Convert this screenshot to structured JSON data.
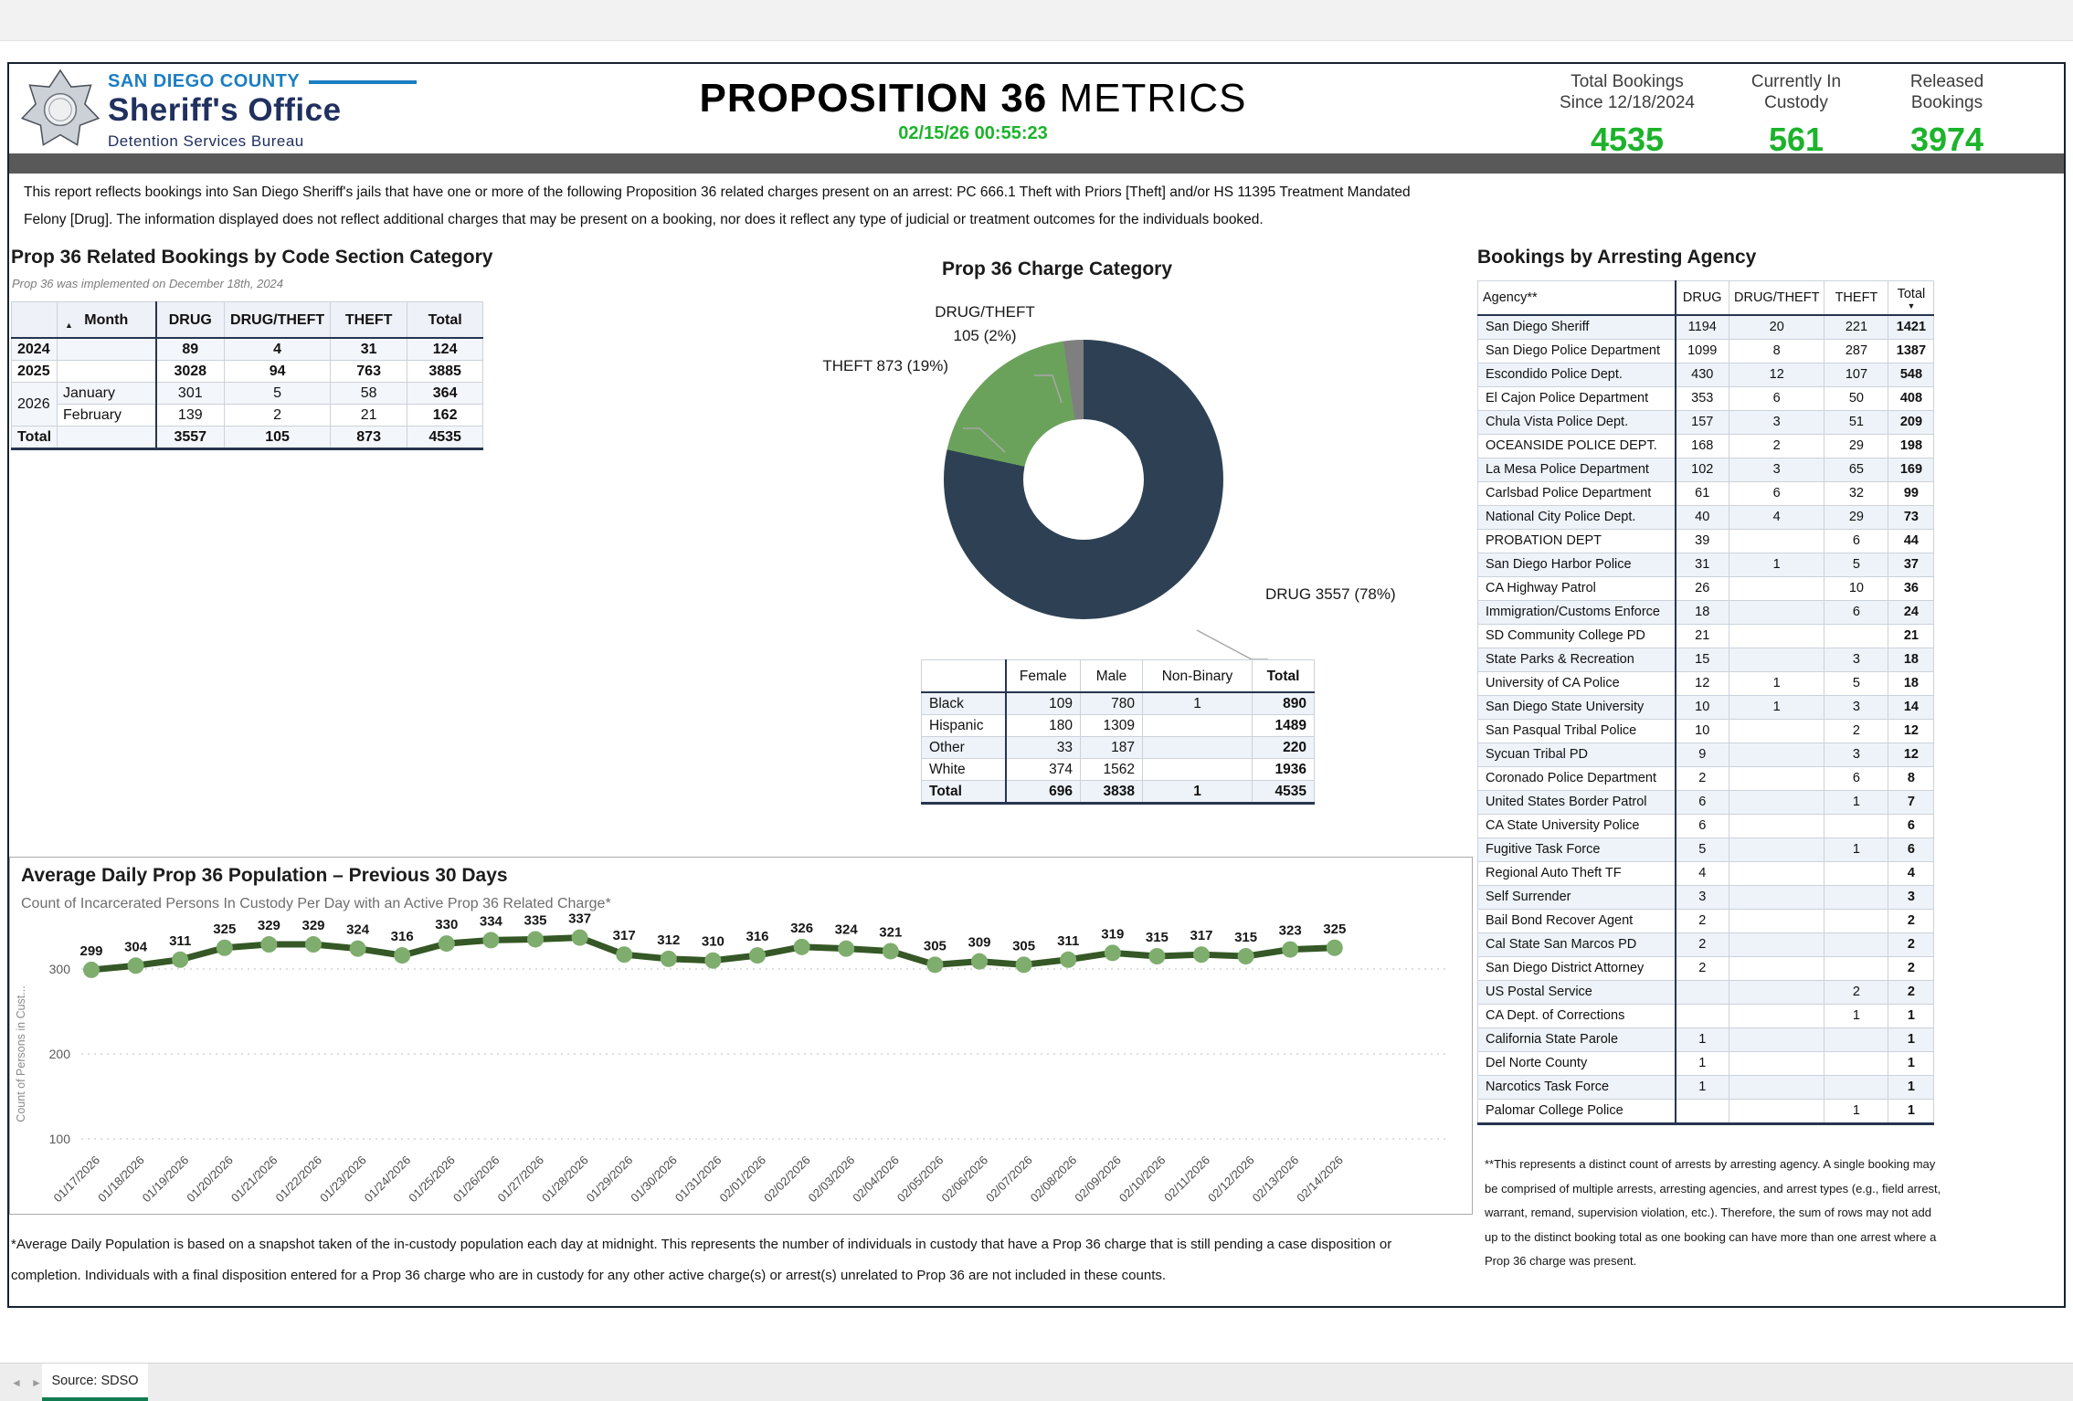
{
  "header": {
    "agency_line1": "SAN DIEGO COUNTY",
    "agency_line2": "Sheriff's Office",
    "agency_line3": "Detention Services Bureau",
    "title_bold": "PROPOSITION 36",
    "title_light": " METRICS",
    "timestamp": "02/15/26 00:55:23",
    "accent_green": "#1cb32b",
    "stats": [
      {
        "label_line1": "Total Bookings",
        "label_line2": "Since 12/18/2024",
        "value": "4535"
      },
      {
        "label_line1": "Currently In",
        "label_line2": "Custody",
        "value": "561"
      },
      {
        "label_line1": "Released",
        "label_line2": "Bookings",
        "value": "3974"
      }
    ]
  },
  "intro_text": "This report reflects bookings into San Diego Sheriff's jails that have one or more of the following Proposition 36 related charges present on an arrest: PC 666.1 Theft with Priors [Theft] and/or HS 11395 Treatment Mandated Felony [Drug]. The information displayed does not reflect additional charges that may be present on a booking, nor does it reflect any type of judicial or treatment outcomes for the individuals booked.",
  "bookings_by_code": {
    "title": "Prop 36 Related Bookings by Code Section Category",
    "subtitle": "Prop 36 was implemented on December 18th, 2024",
    "columns": [
      "Month",
      "DRUG",
      "DRUG/THEFT",
      "THEFT",
      "Total"
    ],
    "sort_icon": "▲",
    "rows": [
      {
        "year": "2024",
        "month": "",
        "drug": "89",
        "drug_theft": "4",
        "theft": "31",
        "total": "124",
        "bold": true
      },
      {
        "year": "2025",
        "month": "",
        "drug": "3028",
        "drug_theft": "94",
        "theft": "763",
        "total": "3885",
        "bold": true
      },
      {
        "year": "2026",
        "month": "January",
        "drug": "301",
        "drug_theft": "5",
        "theft": "58",
        "total": "364",
        "bold": false
      },
      {
        "year": "",
        "month": "February",
        "drug": "139",
        "drug_theft": "2",
        "theft": "21",
        "total": "162",
        "bold": false
      },
      {
        "year": "Total",
        "month": "",
        "drug": "3557",
        "drug_theft": "105",
        "theft": "873",
        "total": "4535",
        "bold": true
      }
    ]
  },
  "demographics": {
    "columns": [
      "",
      "Female",
      "Male",
      "Non-Binary",
      "Total"
    ],
    "rows": [
      {
        "label": "Black",
        "female": "109",
        "male": "780",
        "non_binary": "1",
        "total": "890"
      },
      {
        "label": "Hispanic",
        "female": "180",
        "male": "1309",
        "non_binary": "",
        "total": "1489"
      },
      {
        "label": "Other",
        "female": "33",
        "male": "187",
        "non_binary": "",
        "total": "220"
      },
      {
        "label": "White",
        "female": "374",
        "male": "1562",
        "non_binary": "",
        "total": "1936"
      },
      {
        "label": "Total",
        "female": "696",
        "male": "3838",
        "non_binary": "1",
        "total": "4535"
      }
    ]
  },
  "arresting_agency": {
    "title": "Bookings by Arresting Agency",
    "columns": [
      "Agency**",
      "DRUG",
      "DRUG/THEFT",
      "THEFT",
      "Total"
    ],
    "sort_icon": "▼",
    "rows": [
      [
        "San Diego Sheriff",
        "1194",
        "20",
        "221",
        "1421"
      ],
      [
        "San Diego Police Department",
        "1099",
        "8",
        "287",
        "1387"
      ],
      [
        "Escondido Police Dept.",
        "430",
        "12",
        "107",
        "548"
      ],
      [
        "El Cajon Police Department",
        "353",
        "6",
        "50",
        "408"
      ],
      [
        "Chula Vista Police Dept.",
        "157",
        "3",
        "51",
        "209"
      ],
      [
        "OCEANSIDE POLICE DEPT.",
        "168",
        "2",
        "29",
        "198"
      ],
      [
        "La Mesa Police Department",
        "102",
        "3",
        "65",
        "169"
      ],
      [
        "Carlsbad Police Department",
        "61",
        "6",
        "32",
        "99"
      ],
      [
        "National City Police Dept.",
        "40",
        "4",
        "29",
        "73"
      ],
      [
        "PROBATION DEPT",
        "39",
        "",
        "6",
        "44"
      ],
      [
        "San Diego Harbor Police",
        "31",
        "1",
        "5",
        "37"
      ],
      [
        "CA Highway Patrol",
        "26",
        "",
        "10",
        "36"
      ],
      [
        "Immigration/Customs Enforce",
        "18",
        "",
        "6",
        "24"
      ],
      [
        "SD Community College PD",
        "21",
        "",
        "",
        "21"
      ],
      [
        "State Parks & Recreation",
        "15",
        "",
        "3",
        "18"
      ],
      [
        "University of CA Police",
        "12",
        "1",
        "5",
        "18"
      ],
      [
        "San Diego State University",
        "10",
        "1",
        "3",
        "14"
      ],
      [
        "San Pasqual Tribal Police",
        "10",
        "",
        "2",
        "12"
      ],
      [
        "Sycuan Tribal PD",
        "9",
        "",
        "3",
        "12"
      ],
      [
        "Coronado Police Department",
        "2",
        "",
        "6",
        "8"
      ],
      [
        "United States Border Patrol",
        "6",
        "",
        "1",
        "7"
      ],
      [
        "CA State University Police",
        "6",
        "",
        "",
        "6"
      ],
      [
        "Fugitive Task Force",
        "5",
        "",
        "1",
        "6"
      ],
      [
        "Regional Auto Theft TF",
        "4",
        "",
        "",
        "4"
      ],
      [
        "Self Surrender",
        "3",
        "",
        "",
        "3"
      ],
      [
        "Bail Bond Recover Agent",
        "2",
        "",
        "",
        "2"
      ],
      [
        "Cal State San Marcos PD",
        "2",
        "",
        "",
        "2"
      ],
      [
        "San Diego District Attorney",
        "2",
        "",
        "",
        "2"
      ],
      [
        "US Postal Service",
        "",
        "",
        "2",
        "2"
      ],
      [
        "CA Dept. of Corrections",
        "",
        "",
        "1",
        "1"
      ],
      [
        "California State Parole",
        "1",
        "",
        "",
        "1"
      ],
      [
        "Del Norte County",
        "1",
        "",
        "",
        "1"
      ],
      [
        "Narcotics Task Force",
        "1",
        "",
        "",
        "1"
      ],
      [
        "Palomar College Police",
        "",
        "",
        "1",
        "1"
      ]
    ]
  },
  "chart_data": [
    {
      "type": "pie",
      "donut": true,
      "title": "Prop 36 Charge Category",
      "labels": [
        "DRUG",
        "THEFT",
        "DRUG/THEFT"
      ],
      "values": [
        3557,
        873,
        105
      ],
      "percents": [
        "78%",
        "19%",
        "2%"
      ],
      "colors": [
        "#2e4154",
        "#6ba25b",
        "#7f7f7f"
      ]
    },
    {
      "type": "line",
      "title": "Average Daily Prop 36 Population – Previous 30 Days",
      "subtitle": "Count of Incarcerated Persons In Custody Per Day with an Active Prop 36 Related Charge*",
      "ylabel": "Count of Persons in Cust...",
      "yticks": [
        300,
        200,
        100
      ],
      "line_color": "#355826",
      "marker_color": "#7ead6e",
      "x": [
        "01/17/2026",
        "01/18/2026",
        "01/19/2026",
        "01/20/2026",
        "01/21/2026",
        "01/22/2026",
        "01/23/2026",
        "01/24/2026",
        "01/25/2026",
        "01/26/2026",
        "01/27/2026",
        "01/28/2026",
        "01/29/2026",
        "01/30/2026",
        "01/31/2026",
        "02/01/2026",
        "02/02/2026",
        "02/03/2026",
        "02/04/2026",
        "02/05/2026",
        "02/06/2026",
        "02/07/2026",
        "02/08/2026",
        "02/09/2026",
        "02/10/2026",
        "02/11/2026",
        "02/12/2026",
        "02/13/2026",
        "02/14/2026"
      ],
      "y": [
        299,
        304,
        311,
        325,
        329,
        329,
        324,
        316,
        330,
        334,
        335,
        337,
        317,
        312,
        310,
        316,
        326,
        324,
        321,
        305,
        309,
        305,
        311,
        319,
        315,
        317,
        315,
        323,
        325
      ]
    }
  ],
  "footnotes": {
    "population_note": "*Average Daily Population is based on a snapshot taken of the in-custody population each day at midnight. This represents the number of individuals in custody that have a Prop 36 charge that is still pending a case disposition or completion. Individuals with a final disposition entered for a Prop 36 charge who are in custody for any other active charge(s) or arrest(s) unrelated to Prop 36 are not included in these counts.",
    "agency_note": "**This represents a distinct count of arrests by arresting agency. A single booking may be comprised of multiple arrests, arresting agencies, and arrest types (e.g., field arrest, warrant, remand, supervision violation, etc.). Therefore, the sum of rows may not add up to the distinct booking total as one booking can have more than one arrest where a Prop 36 charge was present."
  },
  "tab_bar": {
    "label": "Source: SDSO",
    "prev_icon": "◄",
    "next_icon": "►",
    "tab_accent": "#117c52"
  }
}
